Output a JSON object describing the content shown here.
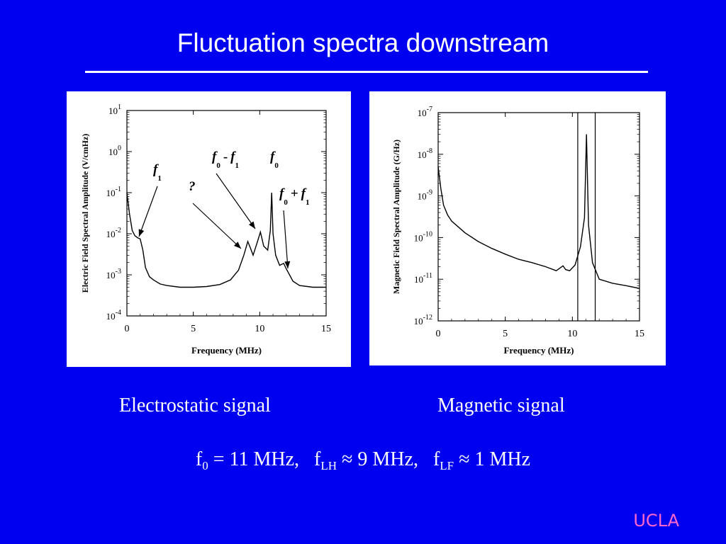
{
  "slide": {
    "title": "Fluctuation spectra downstream",
    "caption_left": "Electrostatic signal",
    "caption_right": "Magnetic signal",
    "formula": {
      "f0_sym": "f",
      "f0_sub": "0",
      "f0_rest": " = 11 MHz,   ",
      "flh_sym": "f",
      "flh_sub": "LH",
      "flh_rest": " ≈ 9 MHz,   ",
      "flf_sym": "f",
      "flf_sub": "LF",
      "flf_rest": " ≈ 1 MHz"
    },
    "logo": "UCLA",
    "colors": {
      "background": "#0000f0",
      "text": "#ffffff",
      "logo": "#ff66cc",
      "trace": "#000000"
    }
  },
  "chart_data": [
    {
      "type": "line",
      "xlabel": "Frequency (MHz)",
      "ylabel": "Electric Field Spectral Amplitude (V/cmHz)",
      "xlim": [
        0,
        15
      ],
      "ylim": [
        0.0001,
        10
      ],
      "yscale": "log",
      "x_ticks": [
        "0",
        "5",
        "10",
        "15"
      ],
      "y_ticks": [
        {
          "base": "10",
          "exp": "1"
        },
        {
          "base": "10",
          "exp": "0"
        },
        {
          "base": "10",
          "exp": "-1"
        },
        {
          "base": "10",
          "exp": "-2"
        },
        {
          "base": "10",
          "exp": "-3"
        },
        {
          "base": "10",
          "exp": "-4"
        }
      ],
      "annotations": [
        {
          "main": "f",
          "sub": "1",
          "x": 1.0,
          "y": 0.008
        },
        {
          "main": "?",
          "sub": "",
          "x": 9.0,
          "y": 0.0072
        },
        {
          "main": "f",
          "sub": "0",
          "op": "-",
          "main2": "f",
          "sub2": "1",
          "x": 9.9,
          "y": 0.011
        },
        {
          "main": "f",
          "sub": "0",
          "x": 10.9,
          "y": 0.09
        },
        {
          "main": "f",
          "sub": "0",
          "op": "+",
          "main2": "f",
          "sub2": "1",
          "x": 11.8,
          "y": 0.0018
        }
      ],
      "series": [
        {
          "values": [
            [
              0,
              0.1
            ],
            [
              0.2,
              0.03
            ],
            [
              0.4,
              0.012
            ],
            [
              0.6,
              0.009
            ],
            [
              0.8,
              0.008
            ],
            [
              1.0,
              0.0075
            ],
            [
              1.2,
              0.004
            ],
            [
              1.4,
              0.0015
            ],
            [
              1.7,
              0.0009
            ],
            [
              2.0,
              0.00075
            ],
            [
              2.5,
              0.0006
            ],
            [
              3.0,
              0.00055
            ],
            [
              4.0,
              0.0005
            ],
            [
              5.0,
              0.0005
            ],
            [
              6.0,
              0.00052
            ],
            [
              7.0,
              0.00058
            ],
            [
              7.8,
              0.00075
            ],
            [
              8.4,
              0.0013
            ],
            [
              8.8,
              0.003
            ],
            [
              9.1,
              0.0065
            ],
            [
              9.3,
              0.0045
            ],
            [
              9.5,
              0.003
            ],
            [
              9.8,
              0.006
            ],
            [
              10.05,
              0.011
            ],
            [
              10.3,
              0.005
            ],
            [
              10.6,
              0.004
            ],
            [
              10.8,
              0.012
            ],
            [
              10.9,
              0.1
            ],
            [
              11.0,
              0.01
            ],
            [
              11.2,
              0.003
            ],
            [
              11.5,
              0.0017
            ],
            [
              11.8,
              0.0019
            ],
            [
              12.0,
              0.0014
            ],
            [
              12.5,
              0.0007
            ],
            [
              13.0,
              0.00055
            ],
            [
              14.0,
              0.0005
            ],
            [
              15.0,
              0.0005
            ]
          ]
        }
      ]
    },
    {
      "type": "line",
      "xlabel": "Frequency (MHz)",
      "ylabel": "Magnetic Field Spectral Amplitude (G/Hz)",
      "xlim": [
        0,
        15
      ],
      "ylim": [
        1e-12,
        1e-07
      ],
      "yscale": "log",
      "x_ticks": [
        "0",
        "5",
        "10",
        "15"
      ],
      "y_ticks": [
        {
          "base": "10",
          "exp": "-7"
        },
        {
          "base": "10",
          "exp": "-8"
        },
        {
          "base": "10",
          "exp": "-9"
        },
        {
          "base": "10",
          "exp": "-10"
        },
        {
          "base": "10",
          "exp": "-11"
        },
        {
          "base": "10",
          "exp": "-12"
        }
      ],
      "vlines": [
        10.4,
        11.7
      ],
      "series": [
        {
          "values": [
            [
              0,
              5e-09
            ],
            [
              0.2,
              1.5e-09
            ],
            [
              0.4,
              6e-10
            ],
            [
              0.7,
              3.5e-10
            ],
            [
              1.0,
              2.5e-10
            ],
            [
              2.0,
              1.3e-10
            ],
            [
              3.0,
              8e-11
            ],
            [
              4.0,
              5.5e-11
            ],
            [
              5.0,
              4e-11
            ],
            [
              6.0,
              3e-11
            ],
            [
              7.0,
              2.5e-11
            ],
            [
              8.0,
              2e-11
            ],
            [
              8.8,
              1.6e-11
            ],
            [
              9.3,
              2.1e-11
            ],
            [
              9.5,
              1.7e-11
            ],
            [
              9.8,
              1.6e-11
            ],
            [
              10.2,
              2.2e-11
            ],
            [
              10.6,
              6e-11
            ],
            [
              10.9,
              3e-10
            ],
            [
              11.05,
              3e-08
            ],
            [
              11.2,
              2e-10
            ],
            [
              11.5,
              2.5e-11
            ],
            [
              12.0,
              1e-11
            ],
            [
              13.0,
              8e-12
            ],
            [
              14.0,
              7e-12
            ],
            [
              15.0,
              6e-12
            ]
          ]
        }
      ]
    }
  ]
}
